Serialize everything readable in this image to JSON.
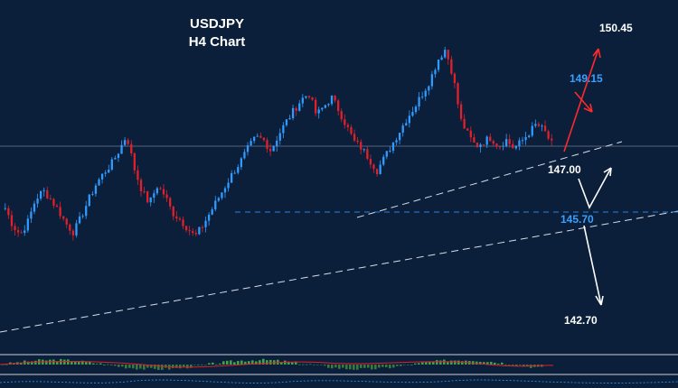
{
  "header": {
    "symbol": "USDJPY",
    "timeframe": "H4 Chart"
  },
  "levels": {
    "l1": "150.45",
    "l2": "149.15",
    "l3": "147.00",
    "l4": "145.70",
    "l5": "142.70"
  },
  "colors": {
    "background": "#0b1f3a",
    "bull": "#2f9bff",
    "bear": "#e0202a",
    "trendline": "#d8dde8",
    "support_dash": "#2f7fd6",
    "arrow_up_red": "#ff2a2a",
    "arrow_white": "#ffffff"
  },
  "chart_data": {
    "type": "candlestick",
    "title": "USDJPY",
    "subtitle": "H4 Chart",
    "levels": [
      150.45,
      149.15,
      147.0,
      145.7,
      142.7
    ],
    "close_path": [
      144.2,
      143.4,
      143.0,
      143.6,
      144.6,
      145.0,
      144.6,
      144.1,
      143.5,
      143.1,
      143.8,
      144.6,
      145.3,
      145.8,
      146.2,
      146.8,
      147.5,
      146.0,
      145.0,
      144.4,
      145.2,
      144.8,
      144.0,
      143.7,
      143.3,
      142.9,
      143.4,
      144.0,
      144.6,
      145.2,
      145.8,
      146.3,
      146.9,
      147.4,
      147.3,
      146.8,
      147.5,
      148.1,
      148.6,
      149.1,
      149.4,
      148.4,
      148.8,
      149.2,
      148.6,
      147.9,
      147.2,
      146.9,
      146.4,
      145.9,
      146.5,
      147.1,
      147.7,
      148.3,
      148.8,
      149.4,
      150.0,
      150.9,
      151.4,
      150.2,
      148.2,
      147.5,
      147.0,
      147.2,
      147.4,
      147.0,
      147.3,
      146.9,
      147.2,
      147.6,
      148.0,
      147.7,
      147.1
    ],
    "indicator": "histogram oscillator (green/red bars)"
  }
}
